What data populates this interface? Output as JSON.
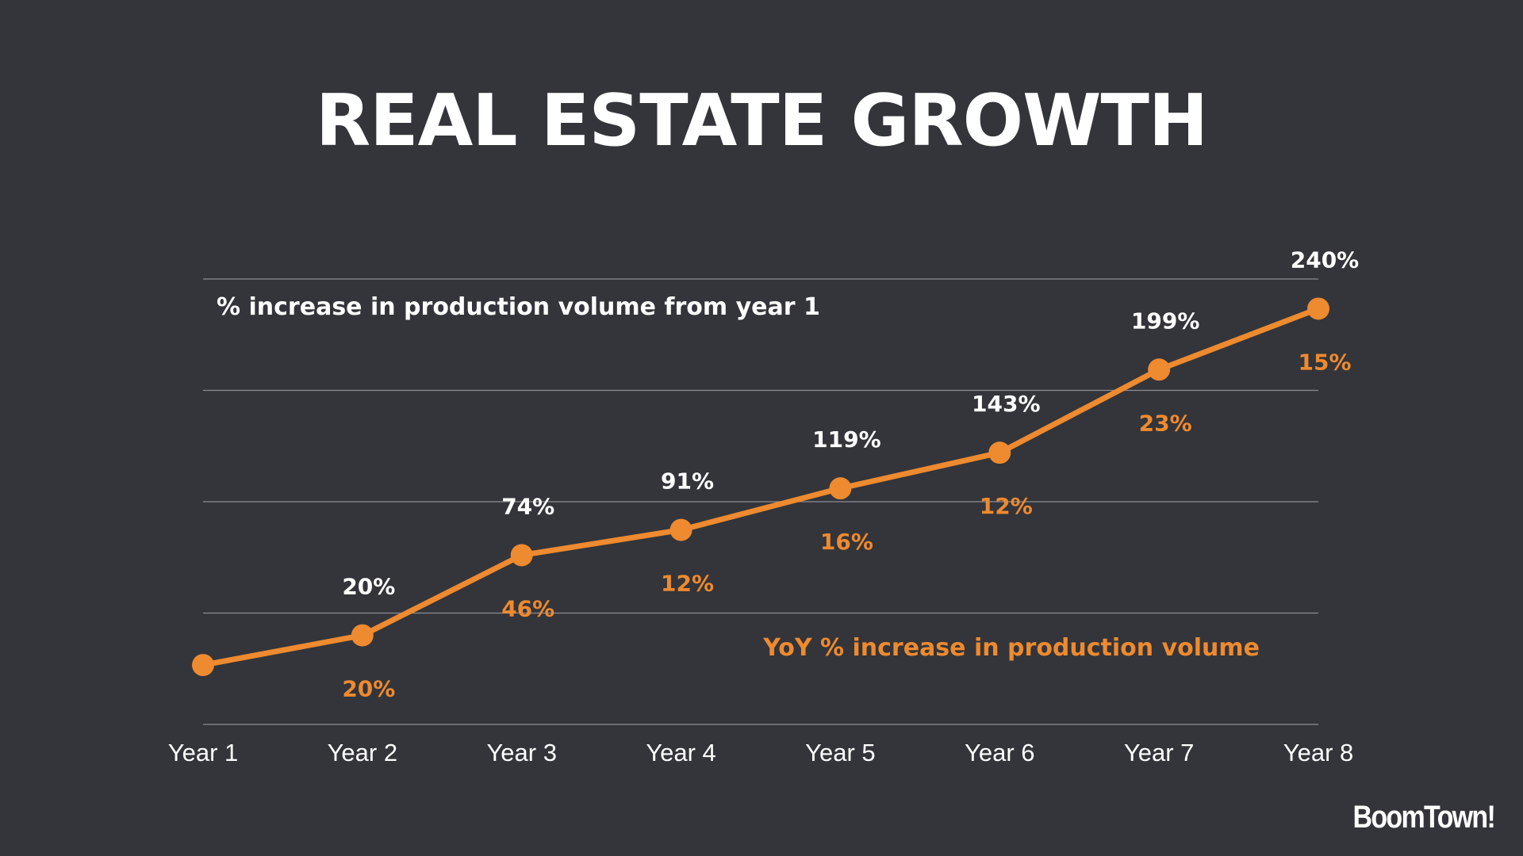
{
  "colors": {
    "background": "#33353a",
    "accent": "#ee8a2f",
    "text": "#ffffff",
    "gridline": "#8b8d92"
  },
  "brand": {
    "logo_text": "BoomTown!"
  },
  "chart_data": {
    "type": "line",
    "title": "REAL ESTATE GROWTH",
    "categories": [
      "Year 1",
      "Year 2",
      "Year 3",
      "Year 4",
      "Year 5",
      "Year 6",
      "Year 7",
      "Year 8"
    ],
    "series": [
      {
        "name": "% increase in production volume from year 1",
        "values": [
          null,
          20,
          74,
          91,
          119,
          143,
          199,
          240
        ],
        "labels": [
          "",
          "20%",
          "74%",
          "91%",
          "119%",
          "143%",
          "199%",
          "240%"
        ]
      },
      {
        "name": "YoY % increase in production volume",
        "values": [
          null,
          20,
          46,
          12,
          16,
          12,
          23,
          15
        ],
        "labels": [
          "",
          "20%",
          "46%",
          "12%",
          "16%",
          "12%",
          "23%",
          "15%"
        ]
      }
    ],
    "ylim": [
      -40,
      260
    ],
    "grid": true,
    "xlabel": "",
    "ylabel": ""
  }
}
